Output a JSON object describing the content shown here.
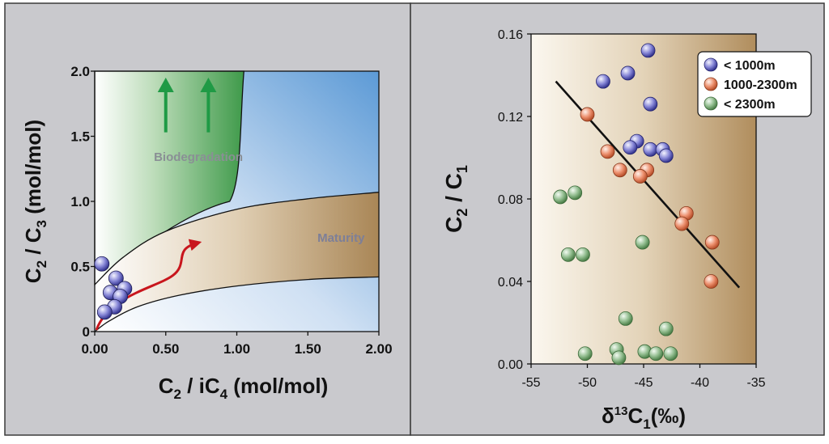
{
  "chart_data": [
    {
      "type": "area",
      "title": "",
      "xlabel": {
        "main": "C",
        "sub1": "2",
        "mid": " / iC",
        "sub2": "4",
        "unit": " (mol/mol)"
      },
      "ylabel": {
        "main": "C",
        "sub1": "2",
        "mid": " / C",
        "sub2": "3",
        "unit": " (mol/mol)"
      },
      "xlim": [
        0,
        2.0
      ],
      "ylim": [
        0,
        2.0
      ],
      "xticks": [
        {
          "value": 0,
          "label": "0.00"
        },
        {
          "value": 0.5,
          "label": "0.50"
        },
        {
          "value": 1.0,
          "label": "1.00"
        },
        {
          "value": 1.5,
          "label": "1.50"
        },
        {
          "value": 2.0,
          "label": "2.00"
        }
      ],
      "yticks": [
        {
          "value": 0,
          "label": "0"
        },
        {
          "value": 0.5,
          "label": "0.5"
        },
        {
          "value": 1.0,
          "label": "1.0"
        },
        {
          "value": 1.5,
          "label": "1.5"
        },
        {
          "value": 2.0,
          "label": "2.0"
        }
      ],
      "regions": [
        {
          "label": "Biodegradation",
          "color": "#3f9a4a"
        },
        {
          "label": "Maturity",
          "color": "#a98656"
        }
      ],
      "boundaries": {
        "biodegradation": {
          "bottom_left": [
            0,
            0.36
          ],
          "apex": [
            0.95,
            1.0
          ],
          "top": [
            1.05,
            2.0
          ]
        },
        "maturity_upper": [
          [
            0,
            0.36
          ],
          [
            0.2,
            0.57
          ],
          [
            0.5,
            0.77
          ],
          [
            1.0,
            0.94
          ],
          [
            1.5,
            1.02
          ],
          [
            2.0,
            1.07
          ]
        ],
        "maturity_lower": [
          [
            0,
            0
          ],
          [
            0.1,
            0.08
          ],
          [
            0.3,
            0.19
          ],
          [
            0.6,
            0.28
          ],
          [
            1.0,
            0.35
          ],
          [
            1.5,
            0.4
          ],
          [
            2.0,
            0.42
          ]
        ]
      },
      "trend_arrow": {
        "from": [
          0.55,
          0.4
        ],
        "to": [
          0.72,
          0.68
        ],
        "color": "#c8161d"
      },
      "biodegradation_arrows": [
        {
          "x": 0.5,
          "y_from": 1.53,
          "y_to": 1.95
        },
        {
          "x": 0.8,
          "y_from": 1.53,
          "y_to": 1.95
        }
      ],
      "points": [
        {
          "x": 0.05,
          "y": 0.52
        },
        {
          "x": 0.15,
          "y": 0.41
        },
        {
          "x": 0.21,
          "y": 0.33
        },
        {
          "x": 0.11,
          "y": 0.3
        },
        {
          "x": 0.18,
          "y": 0.27
        },
        {
          "x": 0.14,
          "y": 0.19
        },
        {
          "x": 0.07,
          "y": 0.15
        }
      ]
    },
    {
      "type": "scatter",
      "title": "",
      "xlabel": {
        "main": "δ",
        "sup": "13",
        "mid": "C",
        "sub": "1",
        "unit": "(‰)"
      },
      "ylabel": {
        "main": "C",
        "sub1": "2",
        "mid": " / C",
        "sub2": "1"
      },
      "xlim": [
        -55,
        -35
      ],
      "ylim": [
        0,
        0.16
      ],
      "xticks": [
        {
          "value": -55,
          "label": "-55"
        },
        {
          "value": -50,
          "label": "-50"
        },
        {
          "value": -45,
          "label": "-45"
        },
        {
          "value": -40,
          "label": "-40"
        },
        {
          "value": -35,
          "label": "-35"
        }
      ],
      "yticks": [
        {
          "value": 0,
          "label": "0.00"
        },
        {
          "value": 0.04,
          "label": "0.04"
        },
        {
          "value": 0.08,
          "label": "0.08"
        },
        {
          "value": 0.12,
          "label": "0.12"
        },
        {
          "value": 0.16,
          "label": "0.16"
        }
      ],
      "legend_position": "top-right",
      "background_gradient": [
        "#fbf7ef",
        "#b08d5d"
      ],
      "trendline": [
        [
          -52.8,
          0.137
        ],
        [
          -36.5,
          0.037
        ]
      ],
      "series": [
        {
          "name": "< 1000m",
          "color": "#7b7bd0",
          "points": [
            [
              -44.6,
              0.152
            ],
            [
              -48.6,
              0.137
            ],
            [
              -46.4,
              0.141
            ],
            [
              -44.4,
              0.126
            ],
            [
              -45.6,
              0.108
            ],
            [
              -46.2,
              0.105
            ],
            [
              -44.4,
              0.104
            ],
            [
              -43.3,
              0.104
            ],
            [
              -43.0,
              0.101
            ]
          ]
        },
        {
          "name": "1000-2300m",
          "color": "#ec8f6d",
          "points": [
            [
              -50.0,
              0.121
            ],
            [
              -48.2,
              0.103
            ],
            [
              -47.1,
              0.094
            ],
            [
              -44.7,
              0.094
            ],
            [
              -45.3,
              0.091
            ],
            [
              -41.2,
              0.073
            ],
            [
              -41.6,
              0.068
            ],
            [
              -38.9,
              0.059
            ],
            [
              -39.0,
              0.04
            ]
          ]
        },
        {
          "name": "< 2300m",
          "color": "#92bd8f",
          "points": [
            [
              -52.4,
              0.081
            ],
            [
              -51.1,
              0.083
            ],
            [
              -51.7,
              0.053
            ],
            [
              -50.4,
              0.053
            ],
            [
              -45.1,
              0.059
            ],
            [
              -46.6,
              0.022
            ],
            [
              -43.0,
              0.017
            ],
            [
              -50.2,
              0.005
            ],
            [
              -47.4,
              0.007
            ],
            [
              -47.2,
              0.003
            ],
            [
              -44.9,
              0.006
            ],
            [
              -43.9,
              0.005
            ],
            [
              -42.6,
              0.005
            ]
          ]
        }
      ]
    }
  ]
}
